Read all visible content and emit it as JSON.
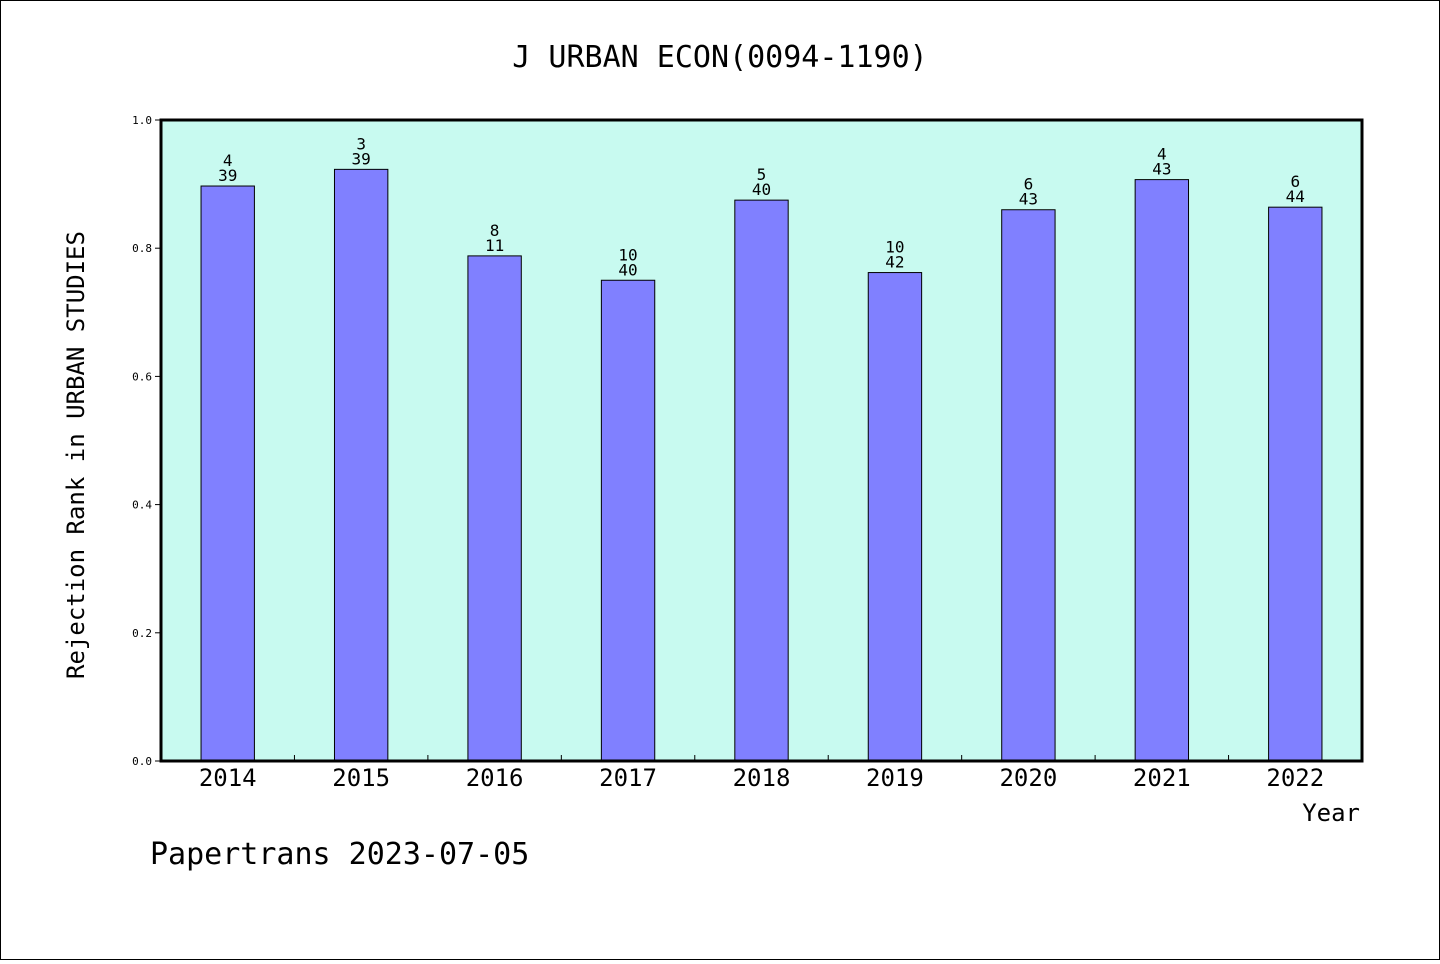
{
  "chart_data": {
    "type": "bar",
    "title": "J URBAN ECON(0094-1190)",
    "xlabel": "Year",
    "ylabel": "Rejection Rank in URBAN STUDIES",
    "ylim": [
      0,
      1.0
    ],
    "yticks": [
      "0.0",
      "0.2",
      "0.4",
      "0.6",
      "0.8",
      "1.0"
    ],
    "categories": [
      "2014",
      "2015",
      "2016",
      "2017",
      "2018",
      "2019",
      "2020",
      "2021",
      "2022"
    ],
    "values": [
      0.897,
      0.923,
      0.788,
      0.75,
      0.875,
      0.762,
      0.86,
      0.907,
      0.864
    ],
    "labels_top": [
      "4",
      "3",
      "8",
      "10",
      "5",
      "10",
      "6",
      "4",
      "6"
    ],
    "labels_bottom": [
      "39",
      "39",
      "11",
      "40",
      "40",
      "42",
      "43",
      "43",
      "44"
    ],
    "grid": false,
    "colors": {
      "bar": "#8080ff",
      "plot_bg": "#c8faf0",
      "axis": "#000000"
    }
  },
  "footer": {
    "text": "Papertrans 2023-07-05"
  }
}
